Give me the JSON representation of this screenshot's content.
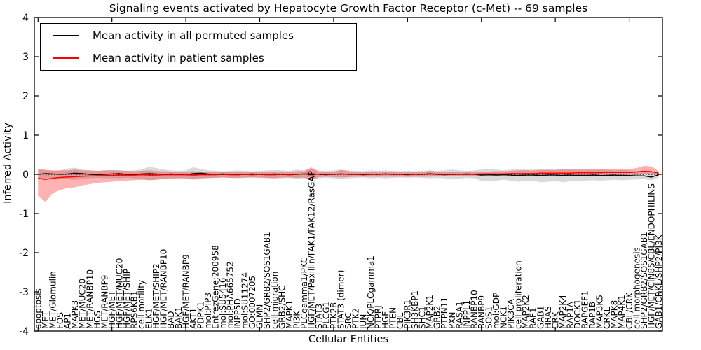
{
  "title": "Signaling events activated by Hepatocyte Growth Factor Receptor (c-Met) -- 69 samples",
  "legend": {
    "items": [
      {
        "label": "Mean activity in all permuted samples",
        "color": "#000000"
      },
      {
        "label": "Mean activity in patient samples",
        "color": "#ff0000"
      }
    ]
  },
  "chart_data": {
    "type": "line",
    "title": "Signaling events activated by Hepatocyte Growth Factor Receptor (c-Met) -- 69 samples",
    "xlabel": "Cellular Entities",
    "ylabel": "Inferred Activity",
    "ylim": [
      -4,
      4
    ],
    "yticks": [
      4,
      3,
      2,
      1,
      0,
      -1,
      -2,
      -3,
      -4
    ],
    "grid": false,
    "legend_position": "upper left",
    "zero_line": {
      "style": "dotted",
      "color": "#000000",
      "value": 0
    },
    "categories": [
      "apoptosis",
      "MET",
      "MET/Glomulin",
      "FOS",
      "AP1",
      "MAPK3",
      "MET/MUC20",
      "MET/RANBP10",
      "HGS",
      "MET/RANBP9",
      "HGF/MET",
      "HGF/MET/MUC20",
      "HGF/MET/SHIP",
      "RPS6KB1",
      "cell motility",
      "ELK1",
      "HGF/MET/SHIP2",
      "HGF/MET/RANBP10",
      "BAD",
      "BAK1",
      "HGF/MET/RANBP9",
      "AKT1",
      "PDPK1",
      "mol:PIP3",
      "EntrezGene:200958",
      "mol:SU5416",
      "mol:PHA665752",
      "INPP5D",
      "mol:SU11274",
      "GO:0007205",
      "GLMN",
      "SHP2/GRB2/SOS1GAB1",
      "cell migration",
      "GRB2/SHC",
      "MAPK1",
      "PI3K",
      "PLCgamma1/PKC",
      "HGF/MET/Paxillin/FAK1/FAK12/RasGAP",
      "STAT3",
      "PLCG1",
      "PTK2B",
      "STAT3 (dimer)",
      "SRC",
      "PTK2",
      "JUN",
      "NCK/PLCgamma1",
      "PTPRJ",
      "HGF",
      "PTEN",
      "CBL",
      "PIK3R1",
      "SH3KBP1",
      "SHC1",
      "MAP2K1",
      "GRB2",
      "PTPN11",
      "PXN",
      "RASA1",
      "INPPL1",
      "RANBP10",
      "RANBP9",
      "SOS1",
      "mol:GDP",
      "NCK1",
      "PIK3CA",
      "cell proliferation",
      "MAP2K2",
      "RAF1",
      "GAB1",
      "HRAS",
      "CRK",
      "MAP2K4",
      "RAP1A",
      "DOCK1",
      "RAPGEF1",
      "RAP1B",
      "MAP3K5",
      "CRKL",
      "MAPK8",
      "MAP4K1",
      "CBL/CRK",
      "cell morphogenesis",
      "SHP2/GRB2/SOS1GAB1",
      "HGF/MET/CIN85/CBL/ENDOPHILINS",
      "GAB1/CRKL/SHP2/PI3K"
    ],
    "series": [
      {
        "name": "Mean activity in all permuted samples",
        "color": "#000000",
        "band_color": "rgba(0,0,0,0.15)",
        "values": [
          0.0,
          0.02,
          0.01,
          0.0,
          0.01,
          0.03,
          0.02,
          0.0,
          -0.01,
          0.0,
          0.01,
          0.02,
          0.0,
          -0.01,
          0.01,
          0.02,
          0.01,
          0.0,
          0.01,
          0.0,
          -0.01,
          0.02,
          0.03,
          0.01,
          0.0,
          0.01,
          0.0,
          -0.01,
          0.0,
          0.01,
          0.0,
          0.0,
          0.01,
          0.0,
          -0.01,
          0.0,
          0.01,
          0.02,
          0.0,
          -0.01,
          0.0,
          0.01,
          0.0,
          0.0,
          -0.01,
          0.0,
          0.0,
          0.01,
          0.0,
          0.0,
          -0.01,
          0.0,
          0.0,
          0.02,
          0.0,
          -0.01,
          0.0,
          0.0,
          0.01,
          0.0,
          -0.02,
          -0.01,
          -0.02,
          -0.01,
          -0.02,
          -0.03,
          -0.02,
          -0.02,
          -0.03,
          -0.02,
          -0.02,
          -0.03,
          -0.02,
          -0.03,
          -0.03,
          -0.02,
          -0.03,
          -0.03,
          -0.02,
          -0.03,
          -0.03,
          -0.04,
          -0.04,
          -0.07,
          -0.01
        ],
        "band_upper": [
          0.12,
          0.1,
          0.09,
          0.1,
          0.15,
          0.17,
          0.12,
          0.1,
          0.09,
          0.1,
          0.11,
          0.1,
          0.09,
          0.1,
          0.12,
          0.19,
          0.16,
          0.12,
          0.1,
          0.09,
          0.1,
          0.18,
          0.14,
          0.1,
          0.09,
          0.08,
          0.09,
          0.1,
          0.09,
          0.08,
          0.09,
          0.1,
          0.11,
          0.1,
          0.09,
          0.12,
          0.1,
          0.15,
          0.1,
          0.09,
          0.1,
          0.12,
          0.1,
          0.09,
          0.08,
          0.1,
          0.09,
          0.1,
          0.09,
          0.08,
          0.09,
          0.08,
          0.09,
          0.1,
          0.09,
          0.1,
          0.12,
          0.1,
          0.09,
          0.1,
          0.12,
          0.13,
          0.12,
          0.1,
          0.12,
          0.13,
          0.12,
          0.12,
          0.14,
          0.13,
          0.12,
          0.14,
          0.13,
          0.12,
          0.12,
          0.11,
          0.12,
          0.11,
          0.1,
          0.11,
          0.1,
          0.09,
          0.08,
          0.07,
          0.04
        ],
        "band_lower": [
          -0.12,
          -0.1,
          -0.09,
          -0.1,
          -0.13,
          -0.14,
          -0.11,
          -0.1,
          -0.09,
          -0.1,
          -0.1,
          -0.1,
          -0.09,
          -0.1,
          -0.11,
          -0.15,
          -0.14,
          -0.11,
          -0.1,
          -0.09,
          -0.1,
          -0.14,
          -0.12,
          -0.1,
          -0.09,
          -0.08,
          -0.09,
          -0.1,
          -0.09,
          -0.08,
          -0.09,
          -0.1,
          -0.1,
          -0.1,
          -0.09,
          -0.11,
          -0.1,
          -0.13,
          -0.1,
          -0.09,
          -0.1,
          -0.11,
          -0.1,
          -0.09,
          -0.08,
          -0.1,
          -0.09,
          -0.1,
          -0.09,
          -0.08,
          -0.09,
          -0.08,
          -0.09,
          -0.1,
          -0.09,
          -0.1,
          -0.13,
          -0.11,
          -0.09,
          -0.1,
          -0.16,
          -0.18,
          -0.16,
          -0.14,
          -0.16,
          -0.19,
          -0.17,
          -0.16,
          -0.2,
          -0.19,
          -0.17,
          -0.2,
          -0.18,
          -0.17,
          -0.16,
          -0.15,
          -0.16,
          -0.15,
          -0.14,
          -0.15,
          -0.14,
          -0.13,
          -0.12,
          -0.15,
          -0.08
        ]
      },
      {
        "name": "Mean activity in patient samples",
        "color": "#ff0000",
        "band_color": "rgba(255,0,0,0.30)",
        "values": [
          -0.1,
          -0.13,
          -0.1,
          -0.08,
          -0.07,
          -0.06,
          -0.05,
          -0.04,
          -0.04,
          -0.03,
          -0.03,
          -0.02,
          -0.02,
          -0.02,
          -0.01,
          -0.02,
          -0.02,
          -0.01,
          -0.01,
          -0.01,
          -0.01,
          -0.02,
          -0.01,
          -0.01,
          -0.01,
          0.0,
          -0.01,
          -0.01,
          0.0,
          -0.01,
          0.0,
          -0.01,
          -0.01,
          0.0,
          -0.01,
          0.0,
          0.01,
          0.02,
          0.0,
          0.0,
          0.0,
          0.01,
          0.0,
          0.0,
          0.0,
          0.0,
          0.0,
          0.01,
          0.0,
          0.0,
          0.0,
          0.0,
          0.0,
          0.01,
          0.0,
          0.0,
          0.0,
          0.0,
          0.0,
          0.0,
          0.01,
          0.01,
          0.01,
          0.01,
          0.02,
          0.02,
          0.02,
          0.02,
          0.03,
          0.03,
          0.03,
          0.03,
          0.03,
          0.04,
          0.04,
          0.04,
          0.04,
          0.05,
          0.05,
          0.05,
          0.05,
          0.06,
          0.08,
          0.07,
          0.03
        ],
        "band_upper": [
          0.15,
          0.12,
          0.1,
          0.1,
          0.1,
          0.12,
          0.1,
          0.1,
          0.09,
          0.1,
          0.1,
          0.1,
          0.09,
          0.08,
          0.09,
          0.1,
          0.08,
          0.08,
          0.07,
          0.07,
          0.07,
          0.08,
          0.07,
          0.06,
          0.06,
          0.06,
          0.06,
          0.06,
          0.06,
          0.06,
          0.06,
          0.07,
          0.07,
          0.06,
          0.06,
          0.08,
          0.08,
          0.18,
          0.06,
          0.06,
          0.06,
          0.11,
          0.08,
          0.06,
          0.05,
          0.06,
          0.06,
          0.07,
          0.06,
          0.06,
          0.06,
          0.06,
          0.06,
          0.09,
          0.06,
          0.06,
          0.06,
          0.06,
          0.06,
          0.06,
          0.07,
          0.07,
          0.08,
          0.08,
          0.09,
          0.1,
          0.1,
          0.1,
          0.11,
          0.11,
          0.11,
          0.12,
          0.12,
          0.12,
          0.12,
          0.13,
          0.13,
          0.13,
          0.13,
          0.13,
          0.14,
          0.16,
          0.22,
          0.2,
          0.08
        ],
        "band_lower": [
          -0.55,
          -0.7,
          -0.48,
          -0.4,
          -0.35,
          -0.33,
          -0.28,
          -0.25,
          -0.22,
          -0.2,
          -0.19,
          -0.17,
          -0.16,
          -0.15,
          -0.14,
          -0.15,
          -0.14,
          -0.12,
          -0.11,
          -0.11,
          -0.1,
          -0.12,
          -0.1,
          -0.09,
          -0.09,
          -0.08,
          -0.09,
          -0.09,
          -0.08,
          -0.08,
          -0.08,
          -0.09,
          -0.1,
          -0.08,
          -0.08,
          -0.09,
          -0.08,
          -0.15,
          -0.07,
          -0.06,
          -0.07,
          -0.08,
          -0.07,
          -0.06,
          -0.06,
          -0.06,
          -0.06,
          -0.06,
          -0.06,
          -0.06,
          -0.06,
          -0.06,
          -0.06,
          -0.06,
          -0.05,
          -0.05,
          -0.05,
          -0.05,
          -0.05,
          -0.05,
          -0.04,
          -0.04,
          -0.04,
          -0.04,
          -0.04,
          -0.03,
          -0.03,
          -0.03,
          -0.03,
          -0.02,
          -0.02,
          -0.02,
          -0.02,
          -0.02,
          -0.02,
          -0.01,
          -0.01,
          -0.01,
          -0.01,
          -0.01,
          -0.01,
          -0.01,
          0.0,
          0.02,
          0.0
        ]
      }
    ]
  }
}
